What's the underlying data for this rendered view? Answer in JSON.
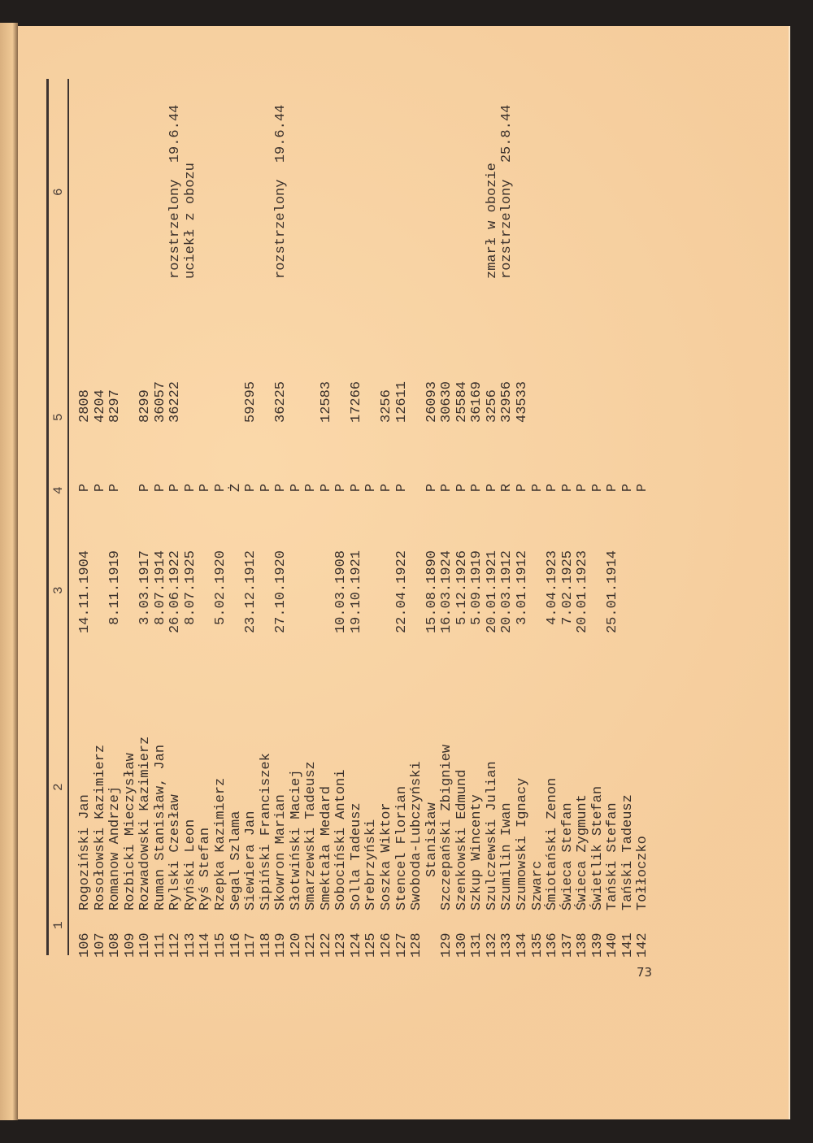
{
  "column_headers": [
    "1",
    "2",
    "3",
    "4",
    "5",
    "6"
  ],
  "page_number": "73",
  "rows": [
    {
      "no": "106",
      "name": "Rogoziński Jan",
      "date": "14.11.1904",
      "cat": "P",
      "num": "2808",
      "note": ""
    },
    {
      "no": "107",
      "name": "Rosołowski Kazimierz",
      "date": "",
      "cat": "P",
      "num": "4204",
      "note": ""
    },
    {
      "no": "108",
      "name": "Romanow Andrzej",
      "date": "8.11.1919",
      "cat": "P",
      "num": "8297",
      "note": ""
    },
    {
      "no": "109",
      "name": "Rozbicki Mieczysław",
      "date": "",
      "cat": "",
      "num": "",
      "note": ""
    },
    {
      "no": "110",
      "name": "Rozwadowski Kazimierz",
      "date": "3.03.1917",
      "cat": "P",
      "num": "8299",
      "note": ""
    },
    {
      "no": "111",
      "name": "Ruman Stanisław, Jan",
      "date": "8.07.1914",
      "cat": "P",
      "num": "36057",
      "note": ""
    },
    {
      "no": "112",
      "name": "Rylski Czesław",
      "date": "26.06.1922",
      "cat": "P",
      "num": "36222",
      "note": "rozstrzelony  19.6.44"
    },
    {
      "no": "113",
      "name": "Ryński Leon",
      "date": "8.07.1925",
      "cat": "P",
      "num": "",
      "note": "uciekł z obozu"
    },
    {
      "no": "114",
      "name": "Ryś Stefan",
      "date": "",
      "cat": "P",
      "num": "",
      "note": ""
    },
    {
      "no": "115",
      "name": "Rzepka Kazimierz",
      "date": "5.02.1920",
      "cat": "P",
      "num": "",
      "note": ""
    },
    {
      "no": "116",
      "name": "Segal Szlama",
      "date": "",
      "cat": "Ż",
      "num": "",
      "note": ""
    },
    {
      "no": "117",
      "name": "Siewiera Jan",
      "date": "23.12.1912",
      "cat": "P",
      "num": "59295",
      "note": ""
    },
    {
      "no": "118",
      "name": "Sipiński Franciszek",
      "date": "",
      "cat": "P",
      "num": "",
      "note": ""
    },
    {
      "no": "119",
      "name": "Skowron Marian",
      "date": "27.10.1920",
      "cat": "P",
      "num": "36225",
      "note": "rozstrzelony  19.6.44"
    },
    {
      "no": "120",
      "name": "Słotwiński Maciej",
      "date": "",
      "cat": "P",
      "num": "",
      "note": ""
    },
    {
      "no": "121",
      "name": "Smarzewski Tadeusz",
      "date": "",
      "cat": "P",
      "num": "",
      "note": ""
    },
    {
      "no": "122",
      "name": "Smektała Medard",
      "date": "",
      "cat": "P",
      "num": "12583",
      "note": ""
    },
    {
      "no": "123",
      "name": "Sobociński Antoni",
      "date": "10.03.1908",
      "cat": "P",
      "num": "",
      "note": ""
    },
    {
      "no": "124",
      "name": "Solla Tadeusz",
      "date": "19.10.1921",
      "cat": "P",
      "num": "17266",
      "note": ""
    },
    {
      "no": "125",
      "name": "Srebrzyński",
      "date": "",
      "cat": "P",
      "num": "",
      "note": ""
    },
    {
      "no": "126",
      "name": "Soszka Wiktor",
      "date": "",
      "cat": "P",
      "num": "3256",
      "note": ""
    },
    {
      "no": "127",
      "name": "Stencel Florian",
      "date": "22.04.1922",
      "cat": "P",
      "num": "12611",
      "note": ""
    },
    {
      "no": "128",
      "name": "Swoboda-Lubczyński",
      "date": "",
      "cat": "",
      "num": "",
      "note": ""
    },
    {
      "no": "",
      "name": "Stanisław",
      "continuation": true,
      "date": "15.08.1890",
      "cat": "P",
      "num": "26093",
      "note": ""
    },
    {
      "no": "129",
      "name": "Szczepański Zbigniew",
      "date": "16.03.1924",
      "cat": "P",
      "num": "30630",
      "note": ""
    },
    {
      "no": "130",
      "name": "Szenkowski Edmund",
      "date": "5.12.1926",
      "cat": "P",
      "num": "25584",
      "note": ""
    },
    {
      "no": "131",
      "name": "Szkup Wincenty",
      "date": "5.09.1919",
      "cat": "P",
      "num": "36169",
      "note": ""
    },
    {
      "no": "132",
      "name": "Szulczewski Julian",
      "date": "20.01.1921",
      "cat": "P",
      "num": "3256",
      "note": "zmarł w obozie"
    },
    {
      "no": "133",
      "name": "Szumilin Iwan",
      "date": "20.03.1912",
      "cat": "R",
      "num": "32956",
      "note": "rozstrzelony  25.8.44"
    },
    {
      "no": "134",
      "name": "Szumowski Ignacy",
      "date": "3.01.1912",
      "cat": "P",
      "num": "43533",
      "note": ""
    },
    {
      "no": "135",
      "name": "Szwarc",
      "date": "",
      "cat": "P",
      "num": "",
      "note": ""
    },
    {
      "no": "136",
      "name": "Śmiotański Zenon",
      "date": "4.04.1923",
      "cat": "P",
      "num": "",
      "note": ""
    },
    {
      "no": "137",
      "name": "Świeca Stefan",
      "date": "7.02.1925",
      "cat": "P",
      "num": "",
      "note": ""
    },
    {
      "no": "138",
      "name": "Świeca Zygmunt",
      "date": "20.01.1923",
      "cat": "P",
      "num": "",
      "note": ""
    },
    {
      "no": "139",
      "name": "Świetlik Stefan",
      "date": "",
      "cat": "P",
      "num": "",
      "note": ""
    },
    {
      "no": "140",
      "name": "Tański Stefan",
      "date": "25.01.1914",
      "cat": "P",
      "num": "",
      "note": ""
    },
    {
      "no": "141",
      "name": "Tański Tadeusz",
      "date": "",
      "cat": "P",
      "num": "",
      "note": ""
    },
    {
      "no": "142",
      "name": "Tołłoczko",
      "date": "",
      "cat": "P",
      "num": "",
      "note": ""
    }
  ]
}
